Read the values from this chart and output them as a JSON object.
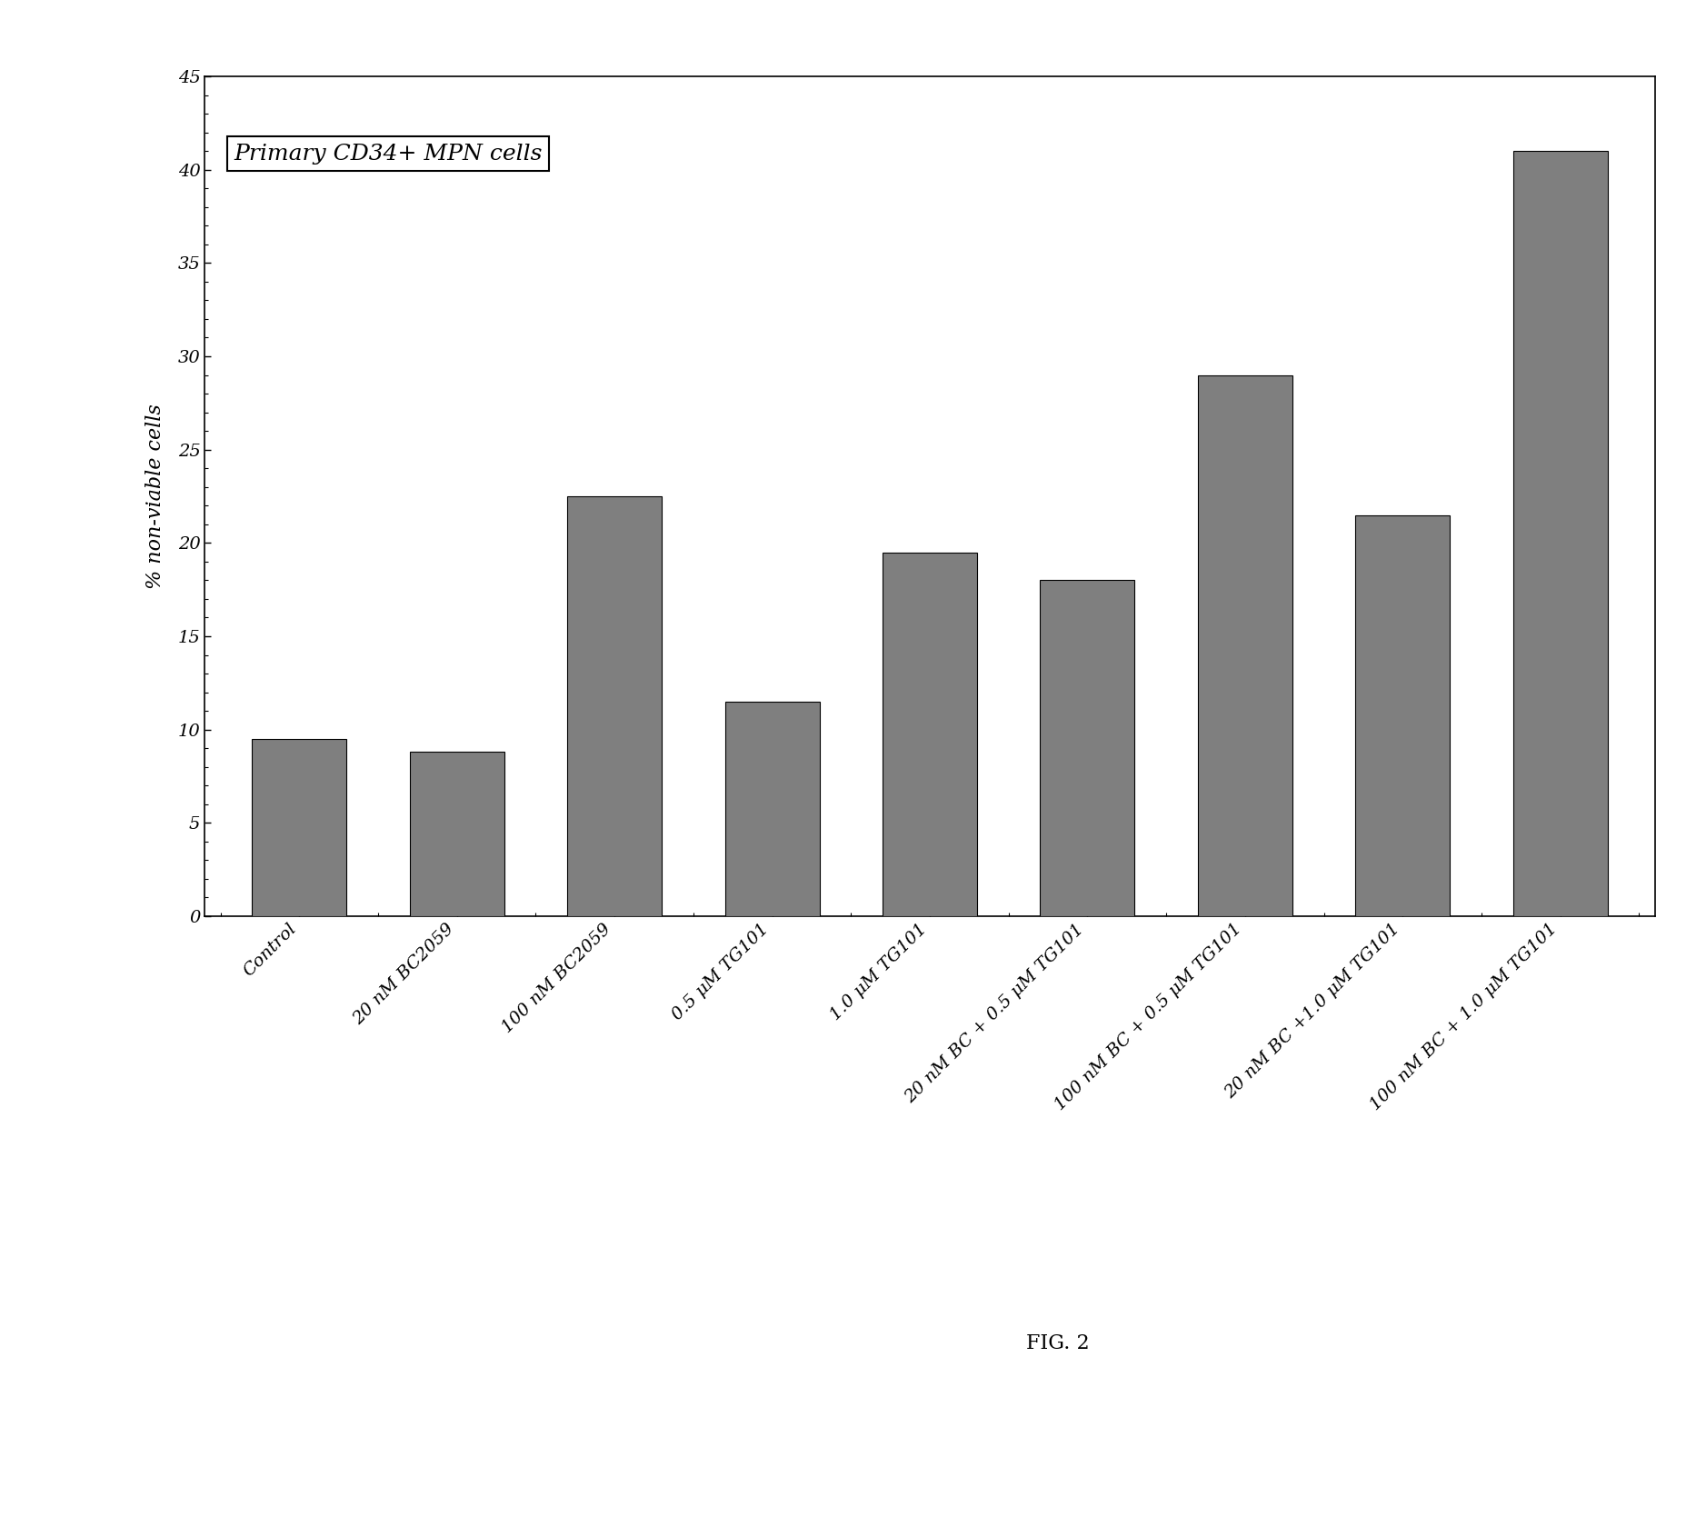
{
  "categories": [
    "Control",
    "20 nM BC2059",
    "100 nM BC2059",
    "0.5 μM TG101",
    "1.0 μM TG101",
    "20 nM BC + 0.5 μM TG101",
    "100 nM BC + 0.5 μM TG101",
    "20 nM BC +1.0 μM TG101",
    "100 nM BC + 1.0 μM TG101"
  ],
  "values": [
    9.5,
    8.8,
    22.5,
    11.5,
    19.5,
    18.0,
    29.0,
    21.5,
    41.0
  ],
  "bar_color": "#7f7f7f",
  "ylabel": "% non-viable cells",
  "ylim": [
    0,
    45
  ],
  "yticks": [
    0,
    5,
    10,
    15,
    20,
    25,
    30,
    35,
    40,
    45
  ],
  "annotation": "Primary CD34+ MPN cells",
  "annotation_fontsize": 18,
  "ylabel_fontsize": 16,
  "tick_fontsize": 14,
  "fig_caption": "FIG. 2",
  "fig_caption_fontsize": 16,
  "background_color": "#ffffff"
}
